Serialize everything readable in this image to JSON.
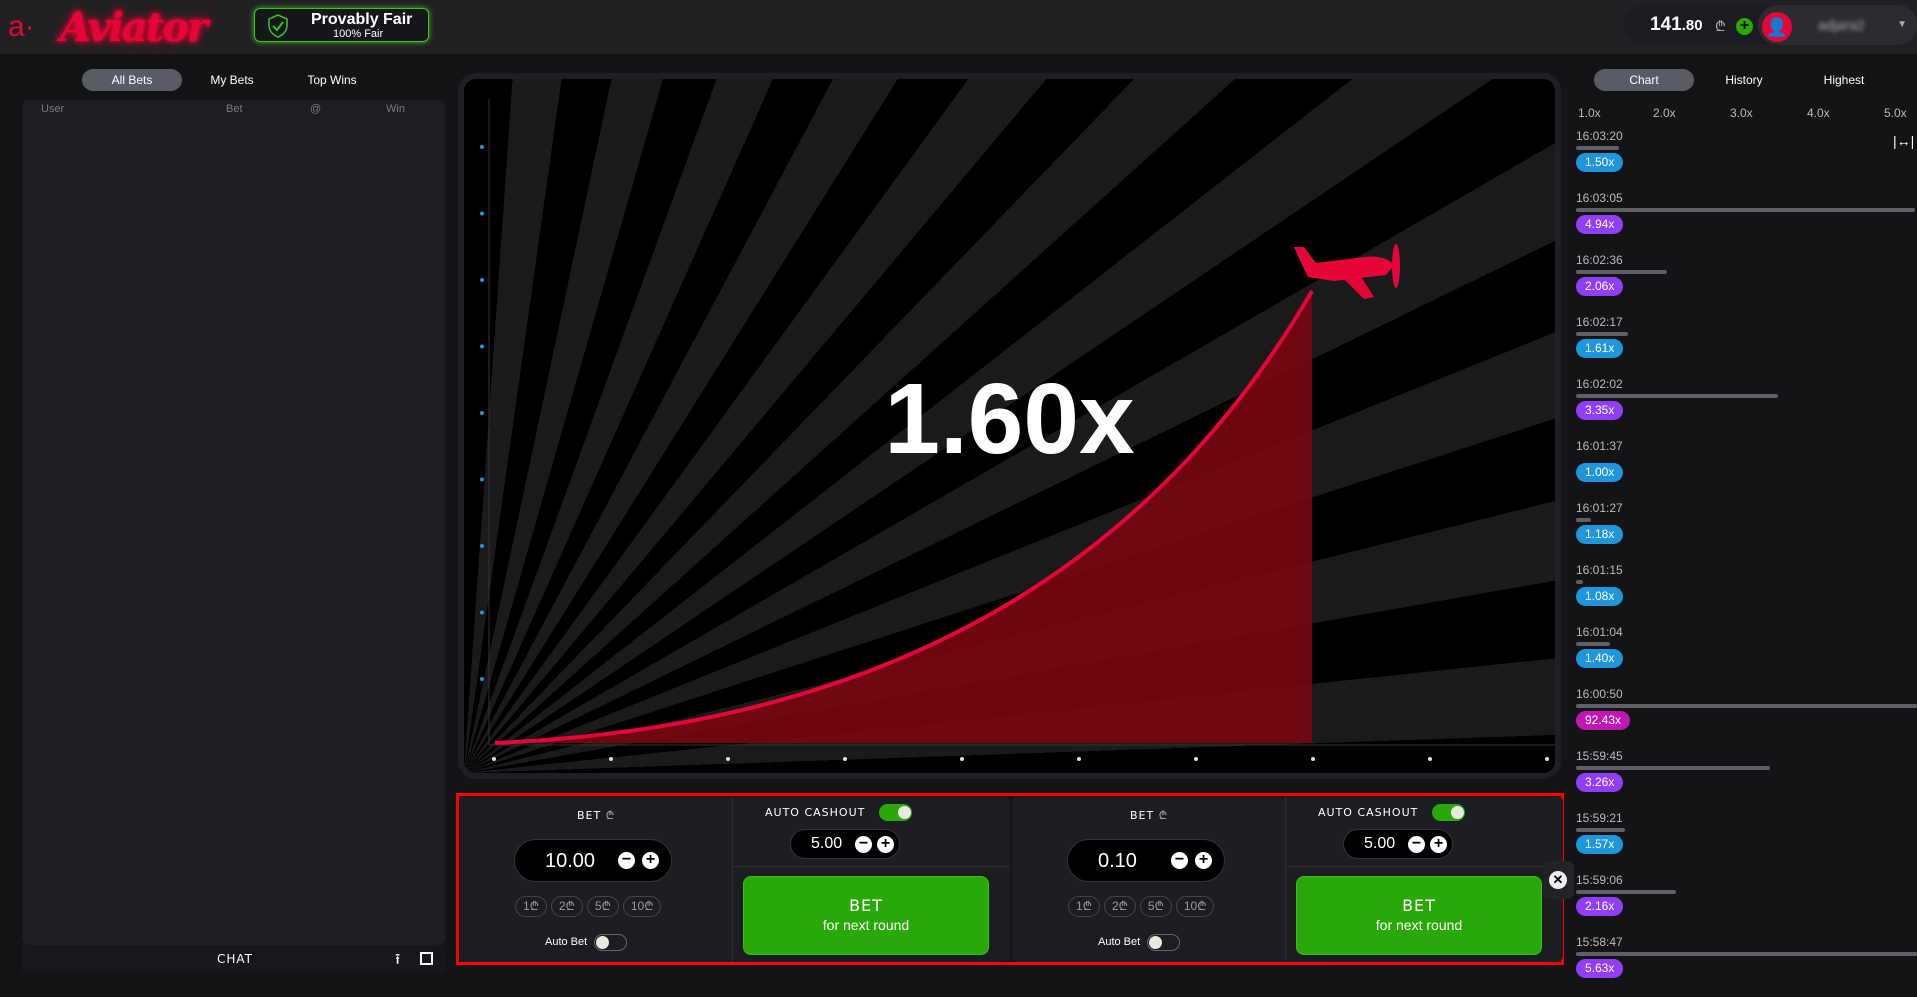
{
  "header": {
    "logo_text": "Aviator",
    "provably_fair": {
      "title": "Provably Fair",
      "subtitle": "100% Fair"
    },
    "balance_int": "141",
    "balance_dec": ".80",
    "currency_icon": "lari-icon",
    "currency": "₾",
    "username": "adjara2"
  },
  "left": {
    "tabs": [
      "All Bets",
      "My Bets",
      "Top Wins"
    ],
    "active_tab": 0,
    "columns": [
      "User",
      "Bet",
      "@",
      "Win"
    ],
    "chat_label": "CHAT"
  },
  "game": {
    "multiplier": "1.60x",
    "curve_color": "#e50539"
  },
  "bet_panels": [
    {
      "bet_label": "BET",
      "amount": "10.00",
      "chips": [
        "1",
        "2",
        "5",
        "10"
      ],
      "auto_bet_label": "Auto Bet",
      "auto_bet_on": false,
      "auto_cashout_label": "AUTO CASHOUT",
      "auto_cashout_on": true,
      "cashout_value": "5.00",
      "button_title": "BET",
      "button_sub": "for next round"
    },
    {
      "bet_label": "BET",
      "amount": "0.10",
      "chips": [
        "1",
        "2",
        "5",
        "10"
      ],
      "auto_bet_label": "Auto Bet",
      "auto_bet_on": false,
      "auto_cashout_label": "AUTO CASHOUT",
      "auto_cashout_on": true,
      "cashout_value": "5.00",
      "button_title": "BET",
      "button_sub": "for next round"
    }
  ],
  "right": {
    "tabs": [
      "Chart",
      "History",
      "Highest"
    ],
    "active_tab": 0,
    "axis": [
      "1.0x",
      "2.0x",
      "3.0x",
      "4.0x",
      "5.0x"
    ],
    "history": [
      {
        "time": "16:03:20",
        "mult": 1.5
      },
      {
        "time": "16:03:05",
        "mult": 4.94
      },
      {
        "time": "16:02:36",
        "mult": 2.06
      },
      {
        "time": "16:02:17",
        "mult": 1.61
      },
      {
        "time": "16:02:02",
        "mult": 3.35
      },
      {
        "time": "16:01:37",
        "mult": 1.0
      },
      {
        "time": "16:01:27",
        "mult": 1.18
      },
      {
        "time": "16:01:15",
        "mult": 1.08
      },
      {
        "time": "16:01:04",
        "mult": 1.4
      },
      {
        "time": "16:00:50",
        "mult": 92.43
      },
      {
        "time": "15:59:45",
        "mult": 3.26
      },
      {
        "time": "15:59:21",
        "mult": 1.57
      },
      {
        "time": "15:59:06",
        "mult": 2.16
      },
      {
        "time": "15:58:47",
        "mult": 5.63
      }
    ],
    "colors": {
      "low": "#1f95db",
      "mid": "#913ef8",
      "high": "#c017b4"
    }
  }
}
